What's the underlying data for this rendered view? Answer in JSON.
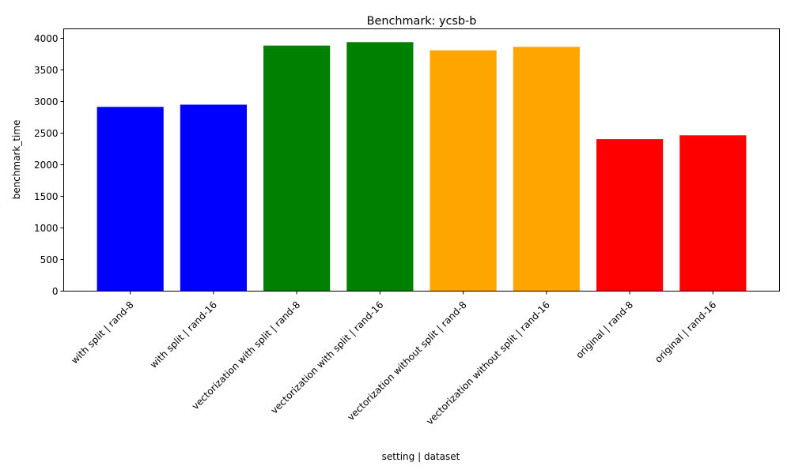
{
  "chart_data": {
    "type": "bar",
    "title": "Benchmark: ycsb-b",
    "xlabel": "setting | dataset",
    "ylabel": "benchmark_time",
    "ylim": [
      0,
      4150
    ],
    "yticks": [
      0,
      500,
      1000,
      1500,
      2000,
      2500,
      3000,
      3500,
      4000
    ],
    "grid": false,
    "categories": [
      "with split | rand-8",
      "with split | rand-16",
      "vectorization with split | rand-8",
      "vectorization with split | rand-16",
      "vectorization without split | rand-8",
      "vectorization without split | rand-16",
      "original | rand-8",
      "original | rand-16"
    ],
    "values": [
      2915,
      2950,
      3885,
      3940,
      3810,
      3865,
      2405,
      2465
    ],
    "colors": [
      "#0000ff",
      "#0000ff",
      "#008000",
      "#008000",
      "#ffa500",
      "#ffa500",
      "#ff0000",
      "#ff0000"
    ]
  }
}
